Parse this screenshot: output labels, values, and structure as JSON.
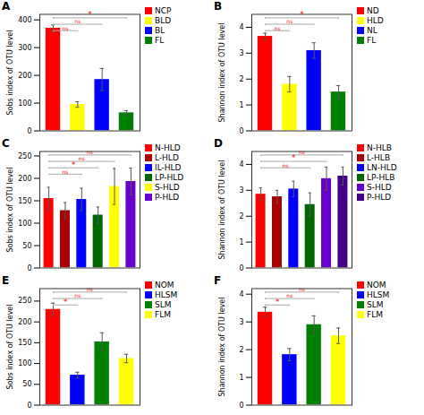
{
  "chart_data": [
    {
      "type": "bar",
      "title": "A",
      "ylabel": "Sobs index of OTU level",
      "categories": [
        "NCP",
        "BLD",
        "BL",
        "FL"
      ],
      "colors": [
        "#ff0000",
        "#ffff00",
        "#0000ff",
        "#008000"
      ],
      "values": [
        370,
        95,
        185,
        65
      ],
      "errors": [
        12,
        10,
        40,
        8
      ],
      "ylim": [
        0,
        420
      ],
      "yticks": [
        0,
        100,
        200,
        300,
        400
      ],
      "annotations": [
        {
          "from": "NCP",
          "to": "FL",
          "text": "*"
        },
        {
          "from": "NCP",
          "to": "BL",
          "text": "ns"
        },
        {
          "from": "NCP",
          "to": "BLD",
          "text": "ns"
        }
      ],
      "legend": "upper right",
      "tick_labels": "y",
      "grid": false
    },
    {
      "type": "bar",
      "title": "B",
      "ylabel": "Shannon index of OTU level",
      "categories": [
        "ND",
        "HLD",
        "NL",
        "FL"
      ],
      "colors": [
        "#ff0000",
        "#ffff00",
        "#0000ff",
        "#008000"
      ],
      "values": [
        3.65,
        1.8,
        3.1,
        1.5
      ],
      "errors": [
        0.12,
        0.3,
        0.3,
        0.25
      ],
      "ylim": [
        0,
        4.5
      ],
      "yticks": [
        0,
        1,
        2,
        3,
        4
      ],
      "annotations": [
        {
          "from": "ND",
          "to": "FL",
          "text": "*"
        },
        {
          "from": "ND",
          "to": "NL",
          "text": "ns"
        },
        {
          "from": "ND",
          "to": "HLD",
          "text": "ns"
        }
      ],
      "legend": "upper right",
      "tick_labels": "y",
      "grid": false
    },
    {
      "type": "bar",
      "title": "C",
      "ylabel": "Sobs index of OTU level",
      "categories": [
        "N-HLD",
        "L-HLD",
        "IL-HLD",
        "LP-HLD",
        "S-HLD",
        "P-HLD"
      ],
      "colors": [
        "#ff0000",
        "#aa0000",
        "#0000ff",
        "#006600",
        "#ffff00",
        "#6600cc"
      ],
      "values": [
        155,
        128,
        153,
        118,
        182,
        193
      ],
      "errors": [
        25,
        18,
        25,
        18,
        40,
        30
      ],
      "ylim": [
        0,
        260
      ],
      "yticks": [
        0,
        50,
        100,
        150,
        200,
        250
      ],
      "annotations": [
        {
          "from": "N-HLD",
          "to": "P-HLD",
          "text": "ns"
        },
        {
          "from": "N-HLD",
          "to": "S-HLD",
          "text": "ns"
        },
        {
          "from": "N-HLD",
          "to": "LP-HLD",
          "text": "*"
        },
        {
          "from": "N-HLD",
          "to": "IL-HLD",
          "text": "ns"
        }
      ],
      "legend": "upper right",
      "tick_labels": "y",
      "grid": false
    },
    {
      "type": "bar",
      "title": "D",
      "ylabel": "Shannon index of OTU level",
      "categories": [
        "N-HLB",
        "L-HLB",
        "LN-HLD",
        "LP-HLB",
        "S-HLD",
        "P-HLD"
      ],
      "colors": [
        "#ff0000",
        "#aa0000",
        "#0000ff",
        "#006600",
        "#6600cc",
        "#440088"
      ],
      "values": [
        2.85,
        2.75,
        3.05,
        2.45,
        3.45,
        3.55
      ],
      "errors": [
        0.25,
        0.25,
        0.3,
        0.45,
        0.45,
        0.35
      ],
      "ylim": [
        0,
        4.5
      ],
      "yticks": [
        0,
        1,
        2,
        3,
        4
      ],
      "annotations": [
        {
          "from": "N-HLB",
          "to": "P-HLD",
          "text": "ns"
        },
        {
          "from": "N-HLB",
          "to": "S-HLD",
          "text": "*"
        },
        {
          "from": "N-HLB",
          "to": "LP-HLB",
          "text": "ns"
        }
      ],
      "legend": "upper right",
      "tick_labels": "y",
      "grid": false
    },
    {
      "type": "bar",
      "title": "E",
      "ylabel": "Sobs index of OTU level",
      "categories": [
        "NOM",
        "HLSM",
        "SLM",
        "FLM"
      ],
      "colors": [
        "#ff0000",
        "#0000ff",
        "#008000",
        "#ffff00"
      ],
      "values": [
        230,
        72,
        152,
        112
      ],
      "errors": [
        15,
        7,
        22,
        10
      ],
      "ylim": [
        0,
        280
      ],
      "yticks": [
        0,
        50,
        100,
        150,
        200,
        250
      ],
      "annotations": [
        {
          "from": "NOM",
          "to": "FLM",
          "text": "ns"
        },
        {
          "from": "NOM",
          "to": "SLM",
          "text": "ns"
        },
        {
          "from": "NOM",
          "to": "HLSM",
          "text": "*"
        }
      ],
      "legend": "upper right",
      "tick_labels": "y",
      "grid": false
    },
    {
      "type": "bar",
      "title": "F",
      "ylabel": "Shannon index of OTU level",
      "categories": [
        "NOM",
        "HLSM",
        "SLM",
        "FLM"
      ],
      "colors": [
        "#ff0000",
        "#0000ff",
        "#008000",
        "#ffff00"
      ],
      "values": [
        3.35,
        1.82,
        2.9,
        2.5
      ],
      "errors": [
        0.18,
        0.22,
        0.32,
        0.28
      ],
      "ylim": [
        0,
        4.2
      ],
      "yticks": [
        0,
        1,
        2,
        3,
        4
      ],
      "annotations": [
        {
          "from": "NOM",
          "to": "FLM",
          "text": "ns"
        },
        {
          "from": "NOM",
          "to": "SLM",
          "text": "ns"
        },
        {
          "from": "NOM",
          "to": "HLSM",
          "text": "*"
        }
      ],
      "legend": "upper right",
      "tick_labels": "y",
      "grid": false
    }
  ]
}
